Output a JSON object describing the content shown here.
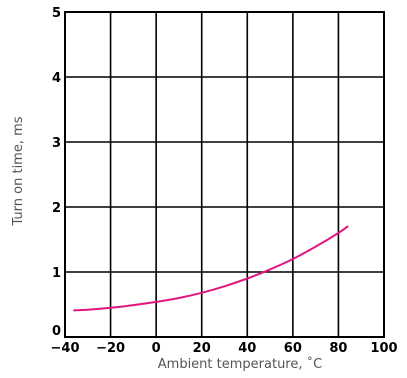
{
  "chart_data": {
    "type": "line",
    "title": "",
    "xlabel": "Ambient temperature, ˚C",
    "ylabel": "Turn on time, ms",
    "xlim": [
      -40,
      100
    ],
    "ylim": [
      0,
      5
    ],
    "x_ticks": [
      -40,
      -20,
      0,
      20,
      40,
      60,
      80,
      100
    ],
    "y_ticks": [
      0,
      1,
      2,
      3,
      4,
      5
    ],
    "x_tick_labels": [
      "−40",
      "−20",
      "0",
      "20",
      "40",
      "60",
      "80",
      "100"
    ],
    "y_tick_labels": [
      "0",
      "1",
      "2",
      "3",
      "4",
      "5"
    ],
    "grid": true,
    "legend": "none",
    "series": [
      {
        "color": "#e0177f",
        "x": [
          -36,
          -30,
          -20,
          -10,
          0,
          10,
          20,
          30,
          40,
          50,
          60,
          70,
          80,
          84
        ],
        "y": [
          0.41,
          0.42,
          0.45,
          0.49,
          0.54,
          0.6,
          0.68,
          0.78,
          0.9,
          1.04,
          1.2,
          1.39,
          1.6,
          1.7
        ]
      }
    ]
  }
}
